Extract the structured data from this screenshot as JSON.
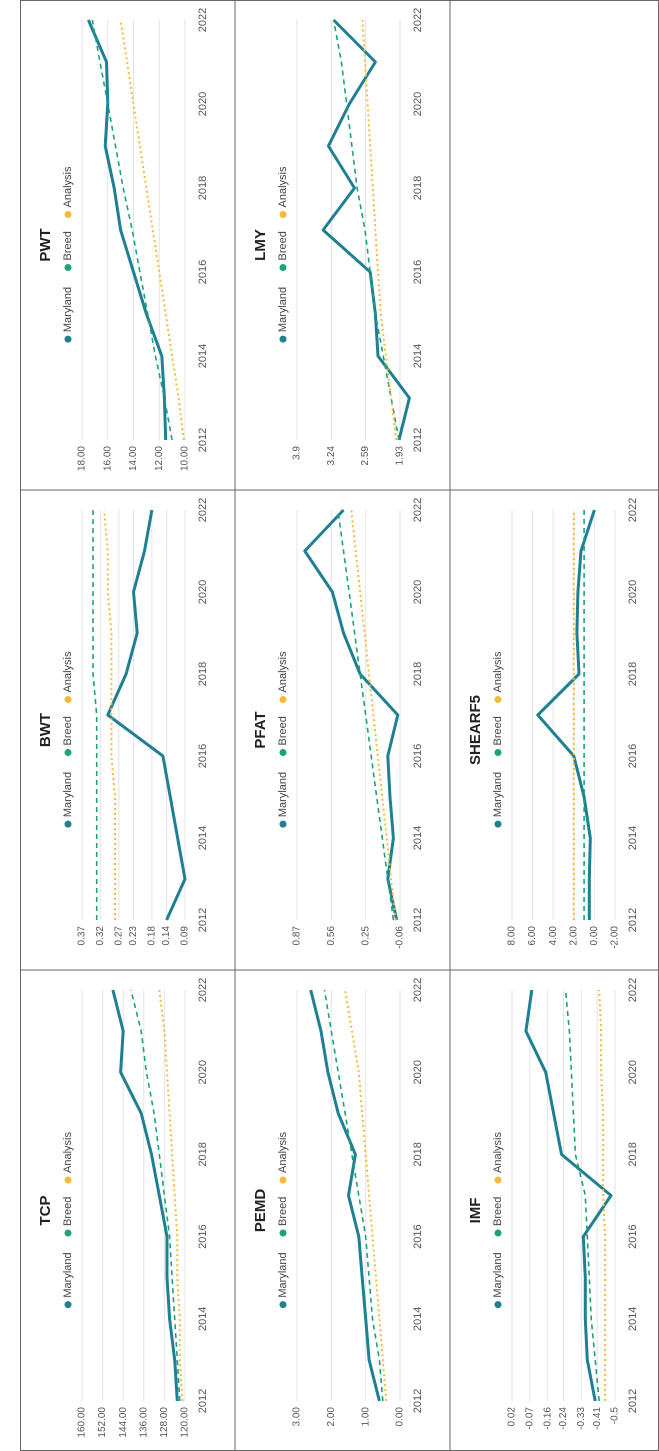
{
  "chart_data": [
    {
      "type": "line",
      "title": "TCP",
      "x": [
        2012,
        2013,
        2014,
        2015,
        2016,
        2017,
        2018,
        2019,
        2020,
        2021,
        2022
      ],
      "xlim": [
        2012,
        2022
      ],
      "xticks": [
        2012,
        2014,
        2016,
        2018,
        2020,
        2022
      ],
      "ylim": [
        120,
        160
      ],
      "yticks": [
        {
          "value": 120,
          "label": "120.00"
        },
        {
          "value": 128,
          "label": "128.00"
        },
        {
          "value": 136,
          "label": "136.00"
        },
        {
          "value": 144,
          "label": "144.00"
        },
        {
          "value": 152,
          "label": "152.00"
        },
        {
          "value": 160,
          "label": "160.00"
        }
      ],
      "grid": true,
      "series": [
        {
          "name": "Maryland",
          "color": "#1f7f93",
          "values": [
            123,
            124,
            126,
            127,
            127,
            130,
            133,
            137,
            145,
            144,
            148
          ]
        },
        {
          "name": "Breed",
          "color": "#1aa37a",
          "values": [
            122,
            123,
            124,
            125,
            126,
            128,
            130,
            132,
            135,
            137,
            141
          ]
        },
        {
          "name": "Analysis",
          "color": "#f6b93b",
          "values": [
            121,
            122,
            122,
            123,
            123,
            124,
            125,
            126,
            127,
            128,
            130
          ]
        }
      ]
    },
    {
      "type": "line",
      "title": "BWT",
      "x": [
        2012,
        2013,
        2014,
        2015,
        2016,
        2017,
        2018,
        2019,
        2020,
        2021,
        2022
      ],
      "xlim": [
        2012,
        2022
      ],
      "xticks": [
        2012,
        2014,
        2016,
        2018,
        2020,
        2022
      ],
      "ylim": [
        0.09,
        0.37
      ],
      "yticks": [
        0.09,
        0.14,
        0.18,
        0.23,
        0.27,
        0.32,
        0.37
      ],
      "grid": true,
      "series": [
        {
          "name": "Maryland",
          "color": "#1f7f93",
          "values": [
            0.14,
            0.09,
            0.11,
            0.13,
            0.15,
            0.3,
            0.25,
            0.22,
            0.23,
            0.2,
            0.18
          ]
        },
        {
          "name": "Breed",
          "color": "#1aa37a",
          "values": [
            0.33,
            0.33,
            0.33,
            0.33,
            0.33,
            0.33,
            0.34,
            0.34,
            0.34,
            0.34,
            0.34
          ]
        },
        {
          "name": "Analysis",
          "color": "#f6b93b",
          "values": [
            0.28,
            0.28,
            0.28,
            0.28,
            0.29,
            0.29,
            0.29,
            0.29,
            0.3,
            0.3,
            0.31
          ]
        }
      ]
    },
    {
      "type": "line",
      "title": "PWT",
      "x": [
        2012,
        2013,
        2014,
        2015,
        2016,
        2017,
        2018,
        2019,
        2020,
        2021,
        2022
      ],
      "xlim": [
        2012,
        2022
      ],
      "xticks": [
        2012,
        2014,
        2016,
        2018,
        2020,
        2022
      ],
      "ylim": [
        10,
        18
      ],
      "yticks": [
        {
          "value": 10,
          "label": "10.00"
        },
        {
          "value": 12,
          "label": "12.00"
        },
        {
          "value": 14,
          "label": "14.00"
        },
        {
          "value": 16,
          "label": "16.00"
        },
        {
          "value": 18,
          "label": "18.00"
        }
      ],
      "grid": true,
      "series": [
        {
          "name": "Maryland",
          "color": "#1f7f93",
          "values": [
            11.5,
            11.6,
            11.8,
            13,
            14,
            15,
            15.5,
            16.2,
            16,
            16.1,
            17.5
          ]
        },
        {
          "name": "Breed",
          "color": "#1aa37a",
          "values": [
            11,
            11.6,
            12.3,
            12.9,
            13.5,
            14.1,
            14.8,
            15.4,
            16,
            16.6,
            17.2
          ]
        },
        {
          "name": "Analysis",
          "color": "#f6b93b",
          "values": [
            10.1,
            10.5,
            11,
            11.5,
            12,
            12.5,
            13,
            13.5,
            14,
            14.5,
            15
          ]
        }
      ]
    },
    {
      "type": "line",
      "title": "PEMD",
      "x": [
        2012,
        2013,
        2014,
        2015,
        2016,
        2017,
        2018,
        2019,
        2020,
        2021,
        2022
      ],
      "xlim": [
        2012,
        2022
      ],
      "xticks": [
        2012,
        2014,
        2016,
        2018,
        2020,
        2022
      ],
      "ylim": [
        0,
        3
      ],
      "yticks": [
        {
          "value": 0,
          "label": "0.00"
        },
        {
          "value": 1,
          "label": "1.00"
        },
        {
          "value": 2,
          "label": "2.00"
        },
        {
          "value": 3,
          "label": "3.00"
        }
      ],
      "grid": true,
      "series": [
        {
          "name": "Maryland",
          "color": "#1f7f93",
          "values": [
            0.6,
            0.9,
            1,
            1.1,
            1.2,
            1.5,
            1.3,
            1.8,
            2.1,
            2.3,
            2.6
          ]
        },
        {
          "name": "Breed",
          "color": "#1aa37a",
          "values": [
            0.5,
            0.6,
            0.8,
            0.9,
            1,
            1.2,
            1.4,
            1.6,
            1.8,
            2,
            2.2
          ]
        },
        {
          "name": "Analysis",
          "color": "#f6b93b",
          "values": [
            0.4,
            0.5,
            0.6,
            0.7,
            0.8,
            0.9,
            1,
            1.1,
            1.2,
            1.4,
            1.6
          ]
        }
      ]
    },
    {
      "type": "line",
      "title": "PFAT",
      "x": [
        2012,
        2013,
        2014,
        2015,
        2016,
        2017,
        2018,
        2019,
        2020,
        2021,
        2022
      ],
      "xlim": [
        2012,
        2022
      ],
      "xticks": [
        2012,
        2014,
        2016,
        2018,
        2020,
        2022
      ],
      "ylim": [
        -0.06,
        0.87
      ],
      "yticks": [
        -0.06,
        0.25,
        0.56,
        0.87
      ],
      "grid": true,
      "series": [
        {
          "name": "Maryland",
          "color": "#1f7f93",
          "values": [
            -0.03,
            0.05,
            0,
            0.03,
            0.05,
            -0.04,
            0.3,
            0.45,
            0.55,
            0.8,
            0.45
          ]
        },
        {
          "name": "Breed",
          "color": "#1aa37a",
          "values": [
            0,
            0.05,
            0.1,
            0.15,
            0.2,
            0.25,
            0.3,
            0.35,
            0.4,
            0.45,
            0.5
          ]
        },
        {
          "name": "Analysis",
          "color": "#f6b93b",
          "values": [
            -0.02,
            0.02,
            0.06,
            0.1,
            0.14,
            0.18,
            0.22,
            0.26,
            0.3,
            0.34,
            0.38
          ]
        }
      ]
    },
    {
      "type": "line",
      "title": "LMY",
      "x": [
        2012,
        2013,
        2014,
        2015,
        2016,
        2017,
        2018,
        2019,
        2020,
        2021,
        2022
      ],
      "xlim": [
        2012,
        2022
      ],
      "xticks": [
        2012,
        2014,
        2016,
        2018,
        2020,
        2022
      ],
      "ylim": [
        1.93,
        3.9
      ],
      "yticks": [
        1.93,
        2.59,
        3.24,
        3.9
      ],
      "grid": true,
      "series": [
        {
          "name": "Maryland",
          "color": "#1f7f93",
          "values": [
            1.95,
            1.75,
            2.35,
            2.4,
            2.5,
            3.4,
            2.8,
            3.3,
            2.9,
            2.4,
            3.2
          ]
        },
        {
          "name": "Breed",
          "color": "#1aa37a",
          "values": [
            1.95,
            2.1,
            2.25,
            2.4,
            2.5,
            2.6,
            2.75,
            2.85,
            2.95,
            3.05,
            3.2
          ]
        },
        {
          "name": "Analysis",
          "color": "#f6b93b",
          "values": [
            2,
            2.1,
            2.2,
            2.3,
            2.35,
            2.4,
            2.45,
            2.5,
            2.55,
            2.6,
            2.65
          ]
        }
      ]
    },
    {
      "type": "line",
      "title": "IMF",
      "x": [
        2012,
        2013,
        2014,
        2015,
        2016,
        2017,
        2018,
        2019,
        2020,
        2021,
        2022
      ],
      "xlim": [
        2012,
        2022
      ],
      "xticks": [
        2012,
        2014,
        2016,
        2018,
        2020,
        2022
      ],
      "ylim": [
        -0.5,
        0.02
      ],
      "yticks": [
        -0.5,
        -0.41,
        -0.33,
        -0.24,
        -0.16,
        -0.07,
        0.02
      ],
      "grid": true,
      "series": [
        {
          "name": "Maryland",
          "color": "#1f7f93",
          "values": [
            -0.4,
            -0.36,
            -0.35,
            -0.35,
            -0.34,
            -0.48,
            -0.23,
            -0.19,
            -0.15,
            -0.05,
            -0.08
          ]
        },
        {
          "name": "Breed",
          "color": "#1aa37a",
          "values": [
            -0.42,
            -0.4,
            -0.38,
            -0.37,
            -0.36,
            -0.35,
            -0.3,
            -0.29,
            -0.28,
            -0.27,
            -0.25
          ]
        },
        {
          "name": "Analysis",
          "color": "#f6b93b",
          "values": [
            -0.45,
            -0.45,
            -0.45,
            -0.45,
            -0.45,
            -0.44,
            -0.44,
            -0.44,
            -0.43,
            -0.43,
            -0.42
          ]
        }
      ]
    },
    {
      "type": "line",
      "title": "SHEARF5",
      "x": [
        2012,
        2013,
        2014,
        2015,
        2016,
        2017,
        2018,
        2019,
        2020,
        2021,
        2022
      ],
      "xlim": [
        2012,
        2022
      ],
      "xticks": [
        2012,
        2014,
        2016,
        2018,
        2020,
        2022
      ],
      "ylim": [
        -2,
        8
      ],
      "yticks": [
        {
          "value": -2,
          "label": "-2.00"
        },
        {
          "value": 0,
          "label": "0.00"
        },
        {
          "value": 2,
          "label": "2.00"
        },
        {
          "value": 4,
          "label": "4.00"
        },
        {
          "value": 6,
          "label": "6.00"
        },
        {
          "value": 8,
          "label": "8.00"
        }
      ],
      "grid": true,
      "series": [
        {
          "name": "Maryland",
          "color": "#1f7f93",
          "values": [
            0.5,
            0.5,
            0.4,
            1,
            2,
            5.5,
            1.5,
            1.7,
            1.6,
            1.3,
            0
          ]
        },
        {
          "name": "Breed",
          "color": "#1aa37a",
          "values": [
            1,
            1,
            1,
            1,
            1,
            1,
            1,
            1,
            1,
            1,
            1
          ]
        },
        {
          "name": "Analysis",
          "color": "#f6b93b",
          "values": [
            2,
            2,
            2,
            2,
            2,
            2,
            2,
            2,
            2,
            2,
            2
          ]
        }
      ]
    }
  ]
}
